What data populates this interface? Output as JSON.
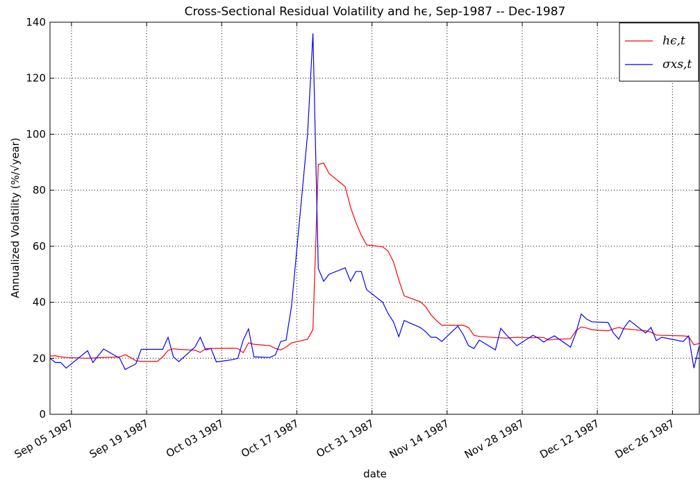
{
  "chart_data": {
    "type": "line",
    "title": "Cross-Sectional Residual Volatility and hϵ, Sep-1987 -- Dec-1987",
    "x_label": "date",
    "y_label": "Annualized Volatility (%/√year)",
    "x": [
      "1987-09-01",
      "1987-09-02",
      "1987-09-03",
      "1987-09-04",
      "1987-09-08",
      "1987-09-09",
      "1987-09-10",
      "1987-09-11",
      "1987-09-14",
      "1987-09-15",
      "1987-09-16",
      "1987-09-17",
      "1987-09-18",
      "1987-09-21",
      "1987-09-22",
      "1987-09-23",
      "1987-09-24",
      "1987-09-25",
      "1987-09-28",
      "1987-09-29",
      "1987-09-30",
      "1987-10-01",
      "1987-10-02",
      "1987-10-05",
      "1987-10-06",
      "1987-10-07",
      "1987-10-08",
      "1987-10-09",
      "1987-10-12",
      "1987-10-13",
      "1987-10-14",
      "1987-10-15",
      "1987-10-16",
      "1987-10-19",
      "1987-10-20",
      "1987-10-21",
      "1987-10-22",
      "1987-10-23",
      "1987-10-26",
      "1987-10-27",
      "1987-10-28",
      "1987-10-29",
      "1987-10-30",
      "1987-11-02",
      "1987-11-03",
      "1987-11-04",
      "1987-11-05",
      "1987-11-06",
      "1987-11-09",
      "1987-11-10",
      "1987-11-11",
      "1987-11-12",
      "1987-11-13",
      "1987-11-16",
      "1987-11-17",
      "1987-11-18",
      "1987-11-19",
      "1987-11-20",
      "1987-11-23",
      "1987-11-24",
      "1987-11-25",
      "1987-11-27",
      "1987-11-30",
      "1987-12-01",
      "1987-12-02",
      "1987-12-03",
      "1987-12-04",
      "1987-12-07",
      "1987-12-08",
      "1987-12-09",
      "1987-12-10",
      "1987-12-11",
      "1987-12-14",
      "1987-12-15",
      "1987-12-16",
      "1987-12-17",
      "1987-12-18",
      "1987-12-21",
      "1987-12-22",
      "1987-12-23",
      "1987-12-24",
      "1987-12-28",
      "1987-12-29",
      "1987-12-30",
      "1987-12-31"
    ],
    "series": [
      {
        "name": "hϵ,t",
        "color": "#ff0000",
        "values": [
          20.8,
          20.9,
          20.5,
          20.3,
          20,
          20.1,
          20.2,
          20.3,
          20.5,
          21.3,
          20.3,
          19.1,
          18.9,
          18.9,
          20.5,
          22.8,
          23.4,
          23.2,
          22.9,
          22.1,
          23.4,
          23.5,
          23.5,
          23.6,
          23.5,
          22,
          25.5,
          25,
          24.5,
          23.5,
          23,
          24,
          25.5,
          26.8,
          30.3,
          89.2,
          89.7,
          86,
          81.3,
          74,
          68.5,
          64,
          60.5,
          59.8,
          58.3,
          54.5,
          48,
          42.3,
          40.2,
          38.5,
          35.5,
          33.5,
          31.8,
          31.8,
          31.8,
          31,
          28.2,
          27.8,
          27.4,
          27.3,
          27.2,
          27.5,
          27.3,
          27.5,
          27.4,
          26.5,
          26.8,
          27,
          29.8,
          31.2,
          30.8,
          30.2,
          29.8,
          30.5,
          31,
          30.5,
          30.4,
          29.8,
          29.3,
          28.3,
          28.2,
          28,
          27.8,
          24.8,
          25.3
        ]
      },
      {
        "name": "σxs,t",
        "color": "#0000ff",
        "values": [
          20,
          18.5,
          18.5,
          16.5,
          22.7,
          18.5,
          21,
          23.3,
          20,
          16,
          17,
          18,
          23.2,
          23.2,
          23.2,
          27.5,
          20.5,
          18.8,
          24,
          27.5,
          23,
          23.5,
          18.7,
          19.5,
          20,
          26.5,
          30.5,
          20.5,
          20.3,
          21.2,
          26,
          26.5,
          38.5,
          100,
          136,
          52,
          47.5,
          50,
          52.3,
          47.5,
          51,
          51,
          44.5,
          40,
          36,
          33,
          27.7,
          33.5,
          31,
          29.5,
          27.5,
          27.5,
          26,
          31.5,
          28.5,
          24.5,
          23.5,
          26.5,
          23,
          30.7,
          28.5,
          24.5,
          28.2,
          27.2,
          25.8,
          27,
          28,
          24,
          29,
          35.8,
          34,
          33,
          32.8,
          29,
          26.8,
          31,
          33.5,
          29,
          31,
          26.3,
          27.5,
          26,
          28,
          16.5,
          24.5
        ]
      }
    ],
    "xlim": [
      "1987-09-01",
      "1987-12-31"
    ],
    "xticks": [
      {
        "value": "1987-09-05",
        "label": "Sep 05 1987"
      },
      {
        "value": "1987-09-19",
        "label": "Sep 19 1987"
      },
      {
        "value": "1987-10-03",
        "label": "Oct 03 1987"
      },
      {
        "value": "1987-10-17",
        "label": "Oct 17 1987"
      },
      {
        "value": "1987-10-31",
        "label": "Oct 31 1987"
      },
      {
        "value": "1987-11-14",
        "label": "Nov 14 1987"
      },
      {
        "value": "1987-11-28",
        "label": "Nov 28 1987"
      },
      {
        "value": "1987-12-12",
        "label": "Dec 12 1987"
      },
      {
        "value": "1987-12-26",
        "label": "Dec 26 1987"
      }
    ],
    "ylim": [
      0,
      140
    ],
    "yticks": [
      0,
      20,
      40,
      60,
      80,
      100,
      120,
      140
    ],
    "grid": true,
    "legend": "upper right"
  }
}
